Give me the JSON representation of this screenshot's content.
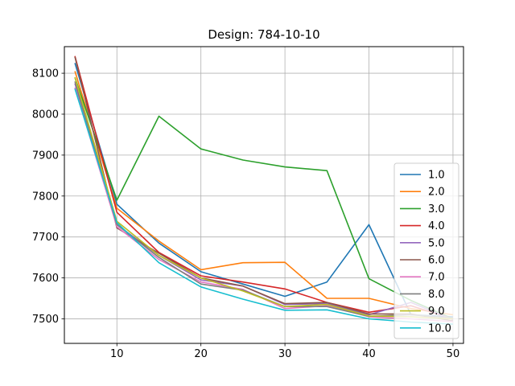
{
  "chart_data": {
    "type": "line",
    "title": "Design: 784-10-10",
    "xlabel": "",
    "ylabel": "",
    "xlim": [
      3.75,
      51.25
    ],
    "ylim": [
      7440,
      8165
    ],
    "xticks": [
      10,
      20,
      30,
      40,
      50
    ],
    "yticks": [
      7500,
      7600,
      7700,
      7800,
      7900,
      8000,
      8100
    ],
    "grid": true,
    "legend_position": "lower-right",
    "x": [
      5,
      10,
      15,
      20,
      25,
      30,
      35,
      40,
      45,
      50
    ],
    "series": [
      {
        "name": "1.0",
        "color": "#1f77b4",
        "values": [
          8125,
          7780,
          7685,
          7615,
          7585,
          7555,
          7590,
          7730,
          7510,
          7505
        ]
      },
      {
        "name": "2.0",
        "color": "#ff7f0e",
        "values": [
          8105,
          7770,
          7690,
          7620,
          7637,
          7638,
          7550,
          7550,
          7525,
          7510
        ]
      },
      {
        "name": "3.0",
        "color": "#2ca02c",
        "values": [
          8090,
          7790,
          7995,
          7915,
          7888,
          7871,
          7862,
          7598,
          7545,
          7500
        ]
      },
      {
        "name": "4.0",
        "color": "#d62728",
        "values": [
          8142,
          7760,
          7662,
          7605,
          7590,
          7573,
          7540,
          7516,
          7532,
          7500
        ]
      },
      {
        "name": "5.0",
        "color": "#9467bd",
        "values": [
          8075,
          7730,
          7655,
          7595,
          7580,
          7535,
          7537,
          7510,
          7540,
          7498
        ]
      },
      {
        "name": "6.0",
        "color": "#8c564b",
        "values": [
          8140,
          7722,
          7660,
          7600,
          7580,
          7537,
          7540,
          7512,
          7512,
          7495
        ]
      },
      {
        "name": "7.0",
        "color": "#e377c2",
        "values": [
          8065,
          7725,
          7645,
          7590,
          7572,
          7525,
          7532,
          7505,
          7500,
          7493
        ]
      },
      {
        "name": "8.0",
        "color": "#7f7f7f",
        "values": [
          8080,
          7730,
          7650,
          7585,
          7570,
          7530,
          7530,
          7506,
          7510,
          7502
        ]
      },
      {
        "name": "9.0",
        "color": "#bcbd22",
        "values": [
          8090,
          7738,
          7655,
          7600,
          7568,
          7530,
          7535,
          7507,
          7505,
          7500
        ]
      },
      {
        "name": "10.0",
        "color": "#17becf",
        "values": [
          8062,
          7735,
          7637,
          7578,
          7548,
          7521,
          7522,
          7500,
          7492,
          7487
        ]
      }
    ]
  }
}
